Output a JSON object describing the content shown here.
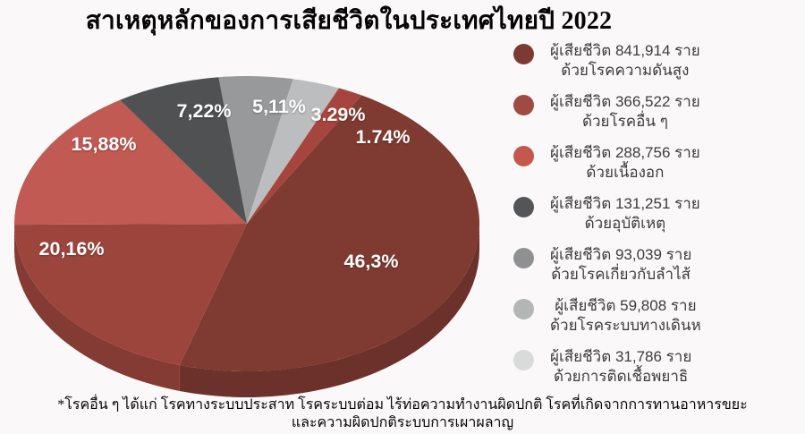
{
  "title": "สาเหตุหลักของการเสียชีวิตในประเทศไทยปี 2022",
  "footnote": {
    "line1": "*โรคอื่น ๆ ได้แก่ โรคทางระบบประสาท โรคระบบต่อม ไร้ท่อความทำงานผิดปกติ โรคที่เกิดจากการทานอาหารขยะ",
    "line2": "และความผิดปกติระบบการเผาผลาญ"
  },
  "chart_data": {
    "type": "pie",
    "title": "สาเหตุหลักของการเสียชีวิตในประเทศไทยปี 2022",
    "unit": "ราย",
    "legend_position": "right",
    "legend": [
      {
        "line1": "ผู้เสียชีวิต 841,914 ราย",
        "line2": "ด้วยโรคความดันสูง",
        "value": 841914,
        "pct": 46.3,
        "color": "#7c3a33"
      },
      {
        "line1": "ผู้เสียชีวิต 366,522 ราย",
        "line2": "ด้วยโรคอื่น ๆ",
        "value": 366522,
        "pct": 20.16,
        "color": "#9f4a42"
      },
      {
        "line1": "ผู้เสียชีวิต 288,756 ราย",
        "line2": "ด้วยเนื้องอก",
        "value": 288756,
        "pct": 15.88,
        "color": "#c4584e"
      },
      {
        "line1": "ผู้เสียชีวิต 131,251 ราย",
        "line2": "ด้วยอุบัติเหตุ",
        "value": 131251,
        "pct": 7.22,
        "color": "#545556"
      },
      {
        "line1": "ผู้เสียชีวิต 93,039 ราย",
        "line2": "ด้วยโรคเกี่ยวกับลำไส้",
        "value": 93039,
        "pct": 5.11,
        "color": "#8f9091"
      },
      {
        "line1": "ผู้เสียชีวิต 59,808 ราย",
        "line2": "ด้วยโรคระบบทางเดินห",
        "value": 59808,
        "pct": 3.29,
        "color": "#b4b5b5"
      },
      {
        "line1": "ผู้เสียชีวิต 31,786 ราย",
        "line2": "ด้วยการติดเชื้อพยาธิ",
        "value": 31786,
        "pct": 1.74,
        "color": "#d9dada"
      }
    ],
    "pie": {
      "style": "3d",
      "start_angle_deg_from_top": -7,
      "slices_clockwise": [
        {
          "pct": 5.11,
          "label": "5,11%",
          "color": "#98999a"
        },
        {
          "pct": 3.29,
          "label": "3.29%",
          "color": "#bcbdbe"
        },
        {
          "pct": 1.74,
          "label": "1.74%",
          "color": "#a6453d"
        },
        {
          "pct": 46.3,
          "label": "46,3%",
          "color": "#7f3a31"
        },
        {
          "pct": 20.16,
          "label": "20,16%",
          "color": "#9b453d"
        },
        {
          "pct": 15.88,
          "label": "15,88%",
          "color": "#c05a52"
        },
        {
          "pct": 7.22,
          "label": "7,22%",
          "color": "#505153"
        }
      ]
    }
  }
}
